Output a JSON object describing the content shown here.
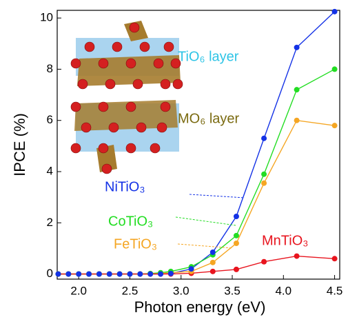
{
  "chart_data": {
    "type": "line",
    "x_label": "Photon energy (eV)",
    "y_label": "IPCE (%)",
    "x": [
      1.8,
      1.9,
      2.0,
      2.1,
      2.2,
      2.3,
      2.4,
      2.5,
      2.6,
      2.7,
      2.8,
      2.9,
      3.1,
      3.31,
      3.54,
      3.81,
      4.13,
      4.5
    ],
    "series": [
      {
        "name": "NiTiO₃",
        "color": "#1432e6",
        "values": [
          0,
          0,
          0,
          0,
          0,
          0,
          0,
          0,
          0,
          0,
          0,
          0.02,
          0.2,
          0.85,
          2.25,
          5.3,
          8.85,
          10.25
        ]
      },
      {
        "name": "CoTiO₃",
        "color": "#22dd22",
        "values": [
          0,
          0,
          0,
          0,
          0,
          0,
          0,
          0,
          0,
          0.02,
          0.05,
          0.1,
          0.28,
          0.75,
          1.5,
          3.9,
          7.2,
          8.0
        ]
      },
      {
        "name": "FeTiO₃",
        "color": "#f5a623",
        "values": [
          0,
          0,
          0,
          0,
          0,
          0,
          0,
          0,
          0,
          0,
          0.02,
          0.05,
          0.1,
          0.45,
          1.2,
          3.55,
          6.0,
          5.8
        ]
      },
      {
        "name": "MnTiO₃",
        "color": "#e8141e",
        "values": [
          0,
          0,
          0,
          0,
          0,
          0,
          0,
          0,
          0,
          0,
          0,
          0,
          0.03,
          0.1,
          0.18,
          0.48,
          0.7,
          0.6
        ]
      }
    ],
    "xlim": [
      1.79,
      4.55
    ],
    "ylim": [
      -0.2,
      10.3
    ],
    "xticks": [
      {
        "value": 2,
        "label": "2.0"
      },
      {
        "value": 2.5,
        "label": "2.5"
      },
      {
        "value": 3,
        "label": "3.0"
      },
      {
        "value": 3.5,
        "label": "3.5"
      },
      {
        "value": 4,
        "label": "4.0"
      },
      {
        "value": 4.5,
        "label": "4.5"
      }
    ],
    "yticks": [
      0,
      2,
      4,
      6,
      8,
      10
    ],
    "annotations": [
      "TiO₆ layer",
      "MO₆ layer"
    ]
  }
}
